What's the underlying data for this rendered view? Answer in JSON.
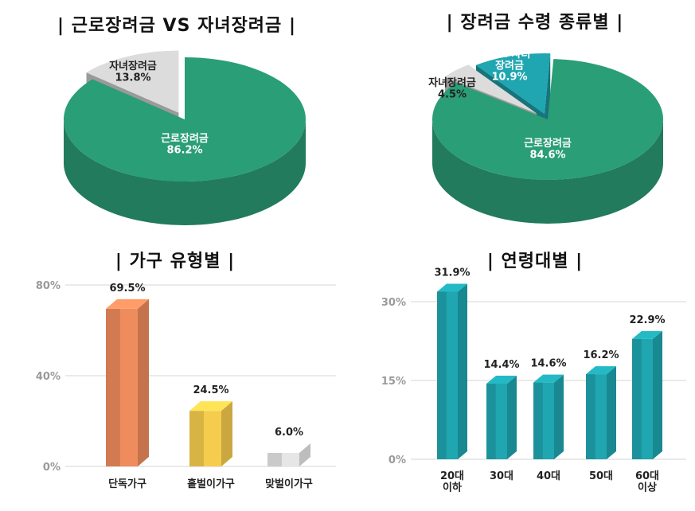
{
  "titles": {
    "t1": "| 근로장려금 VS 자녀장려금 |",
    "t2": "| 장려금 수령 종류별 |",
    "t3": "| 가구 유형별 |",
    "t4": "| 연령대별 |"
  },
  "chart_data": [
    {
      "type": "pie",
      "title": "| 근로장려금 VS 자녀장려금 |",
      "labels": [
        "근로장려금",
        "자녀장려금"
      ],
      "values": [
        86.2,
        13.8
      ],
      "value_labels": [
        "86.2%",
        "13.8%"
      ],
      "colors": [
        "#2a9e76",
        "#dcdcdc"
      ]
    },
    {
      "type": "pie",
      "title": "| 장려금 수령 종류별 |",
      "labels": [
        "근로장려금",
        "자녀장려금",
        "근로·자녀 장려금"
      ],
      "label_lines": [
        [
          "근로장려금"
        ],
        [
          "자녀장려금"
        ],
        [
          "근로·자녀",
          "장려금"
        ]
      ],
      "values": [
        84.6,
        4.5,
        10.9
      ],
      "value_labels": [
        "84.6%",
        "4.5%",
        "10.9%"
      ],
      "colors": [
        "#2a9e76",
        "#dcdcdc",
        "#1fa6b0"
      ]
    },
    {
      "type": "bar",
      "title": "| 가구 유형별 |",
      "categories": [
        "단독가구",
        "홑벌이가구",
        "맞벌이가구"
      ],
      "values": [
        69.5,
        24.5,
        6.0
      ],
      "value_labels": [
        "69.5%",
        "24.5%",
        "6.0%"
      ],
      "ylim": [
        0,
        80
      ],
      "yticks": [
        "0%",
        "40%",
        "80%"
      ],
      "ytick_values": [
        0,
        40,
        80
      ],
      "grid": true,
      "colors": [
        "#ef8c5e",
        "#f6cc4e",
        "#e6e6e6"
      ]
    },
    {
      "type": "bar",
      "title": "| 연령대별 |",
      "categories": [
        "20대 이하",
        "30대",
        "40대",
        "50대",
        "60대 이상"
      ],
      "category_lines": [
        [
          "20대",
          "이하"
        ],
        [
          "30대"
        ],
        [
          "40대"
        ],
        [
          "50대"
        ],
        [
          "60대",
          "이상"
        ]
      ],
      "values": [
        31.9,
        14.4,
        14.6,
        16.2,
        22.9
      ],
      "value_labels": [
        "31.9%",
        "14.4%",
        "14.6%",
        "16.2%",
        "22.9%"
      ],
      "ylim": [
        0,
        30
      ],
      "yticks": [
        "0%",
        "15%",
        "30%"
      ],
      "ytick_values": [
        0,
        15,
        30
      ],
      "grid": true,
      "color": "#1fa6b0"
    }
  ]
}
